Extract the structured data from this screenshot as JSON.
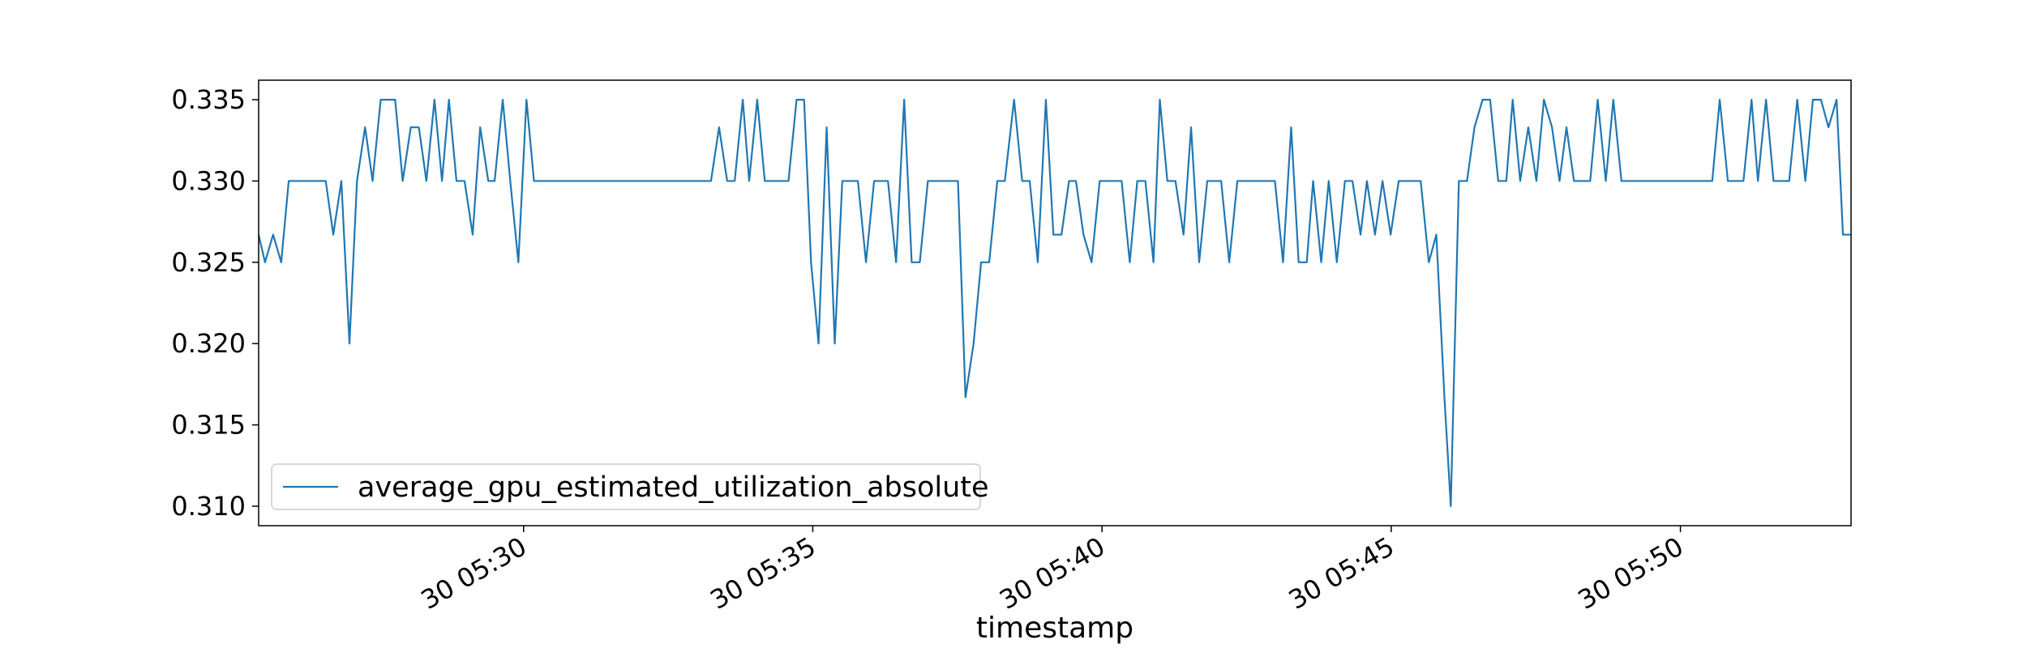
{
  "chart_data": {
    "type": "line",
    "x_label": "timestamp",
    "x": [
      25.42,
      25.53,
      25.67,
      25.81,
      25.94,
      26.58,
      26.71,
      26.85,
      26.99,
      27.12,
      27.26,
      27.39,
      27.53,
      27.78,
      27.91,
      28.05,
      28.19,
      28.32,
      28.46,
      28.59,
      28.71,
      28.84,
      28.98,
      29.12,
      29.25,
      29.39,
      29.5,
      29.64,
      29.77,
      29.91,
      30.05,
      30.18,
      33.24,
      33.38,
      33.52,
      33.65,
      33.79,
      33.9,
      34.04,
      34.17,
      34.58,
      34.72,
      34.85,
      34.97,
      35.1,
      35.24,
      35.38,
      35.51,
      35.78,
      35.92,
      36.06,
      36.3,
      36.44,
      36.58,
      36.71,
      36.85,
      36.99,
      37.51,
      37.64,
      37.78,
      37.91,
      38.05,
      38.19,
      38.32,
      38.48,
      38.62,
      38.75,
      38.89,
      39.03,
      39.16,
      39.3,
      39.43,
      39.55,
      39.68,
      39.82,
      39.96,
      40.34,
      40.48,
      40.61,
      40.75,
      40.89,
      41.0,
      41.13,
      41.27,
      41.41,
      41.54,
      41.68,
      41.82,
      42.06,
      42.2,
      42.34,
      42.99,
      43.13,
      43.27,
      43.4,
      43.54,
      43.65,
      43.79,
      43.92,
      44.06,
      44.2,
      44.33,
      44.47,
      44.58,
      44.72,
      44.85,
      44.99,
      45.13,
      45.51,
      45.65,
      45.78,
      45.92,
      46.03,
      46.17,
      46.31,
      46.44,
      46.58,
      46.71,
      46.85,
      46.99,
      47.1,
      47.23,
      47.37,
      47.51,
      47.64,
      47.78,
      47.91,
      48.03,
      48.16,
      48.44,
      48.57,
      48.71,
      48.84,
      48.98,
      50.55,
      50.68,
      50.82,
      51.09,
      51.23,
      51.34,
      51.48,
      51.61,
      51.88,
      52.02,
      52.16,
      52.29,
      52.43,
      52.56,
      52.7,
      52.81,
      52.95
    ],
    "series": [
      {
        "name": "average_gpu_estimated_utilization_absolute",
        "color": "#1f77b4",
        "values": [
          0.3267,
          0.325,
          0.3267,
          0.325,
          0.33,
          0.33,
          0.3267,
          0.33,
          0.32,
          0.33,
          0.3333,
          0.33,
          0.335,
          0.335,
          0.33,
          0.3333,
          0.3333,
          0.33,
          0.335,
          0.33,
          0.335,
          0.33,
          0.33,
          0.3267,
          0.3333,
          0.33,
          0.33,
          0.335,
          0.33,
          0.325,
          0.335,
          0.33,
          0.33,
          0.3333,
          0.33,
          0.33,
          0.335,
          0.33,
          0.335,
          0.33,
          0.33,
          0.335,
          0.335,
          0.325,
          0.32,
          0.3333,
          0.32,
          0.33,
          0.33,
          0.325,
          0.33,
          0.33,
          0.325,
          0.335,
          0.325,
          0.325,
          0.33,
          0.33,
          0.3167,
          0.32,
          0.325,
          0.325,
          0.33,
          0.33,
          0.335,
          0.33,
          0.33,
          0.325,
          0.335,
          0.3267,
          0.3267,
          0.33,
          0.33,
          0.3267,
          0.325,
          0.33,
          0.33,
          0.325,
          0.33,
          0.33,
          0.325,
          0.335,
          0.33,
          0.33,
          0.3267,
          0.3333,
          0.325,
          0.33,
          0.33,
          0.325,
          0.33,
          0.33,
          0.325,
          0.3333,
          0.325,
          0.325,
          0.33,
          0.325,
          0.33,
          0.325,
          0.33,
          0.33,
          0.3267,
          0.33,
          0.3267,
          0.33,
          0.3267,
          0.33,
          0.33,
          0.325,
          0.3267,
          0.3167,
          0.31,
          0.33,
          0.33,
          0.3333,
          0.335,
          0.335,
          0.33,
          0.33,
          0.335,
          0.33,
          0.3333,
          0.33,
          0.335,
          0.3333,
          0.33,
          0.3333,
          0.33,
          0.33,
          0.335,
          0.33,
          0.335,
          0.33,
          0.33,
          0.335,
          0.33,
          0.33,
          0.335,
          0.33,
          0.335,
          0.33,
          0.33,
          0.335,
          0.33,
          0.335,
          0.335,
          0.3333,
          0.335,
          0.3267,
          0.3267
        ]
      }
    ],
    "xlim": [
      25.42,
      52.95
    ],
    "xticks": [
      {
        "value": 30,
        "label": "30 05:30"
      },
      {
        "value": 35,
        "label": "30 05:35"
      },
      {
        "value": 40,
        "label": "30 05:40"
      },
      {
        "value": 45,
        "label": "30 05:45"
      },
      {
        "value": 50,
        "label": "30 05:50"
      }
    ],
    "ylim": [
      0.3088,
      0.3362
    ],
    "yticks": [
      {
        "value": 0.31,
        "label": "0.310"
      },
      {
        "value": 0.315,
        "label": "0.315"
      },
      {
        "value": 0.32,
        "label": "0.320"
      },
      {
        "value": 0.325,
        "label": "0.325"
      },
      {
        "value": 0.33,
        "label": "0.330"
      },
      {
        "value": 0.335,
        "label": "0.335"
      }
    ],
    "legend": "lower left",
    "grid": false
  }
}
